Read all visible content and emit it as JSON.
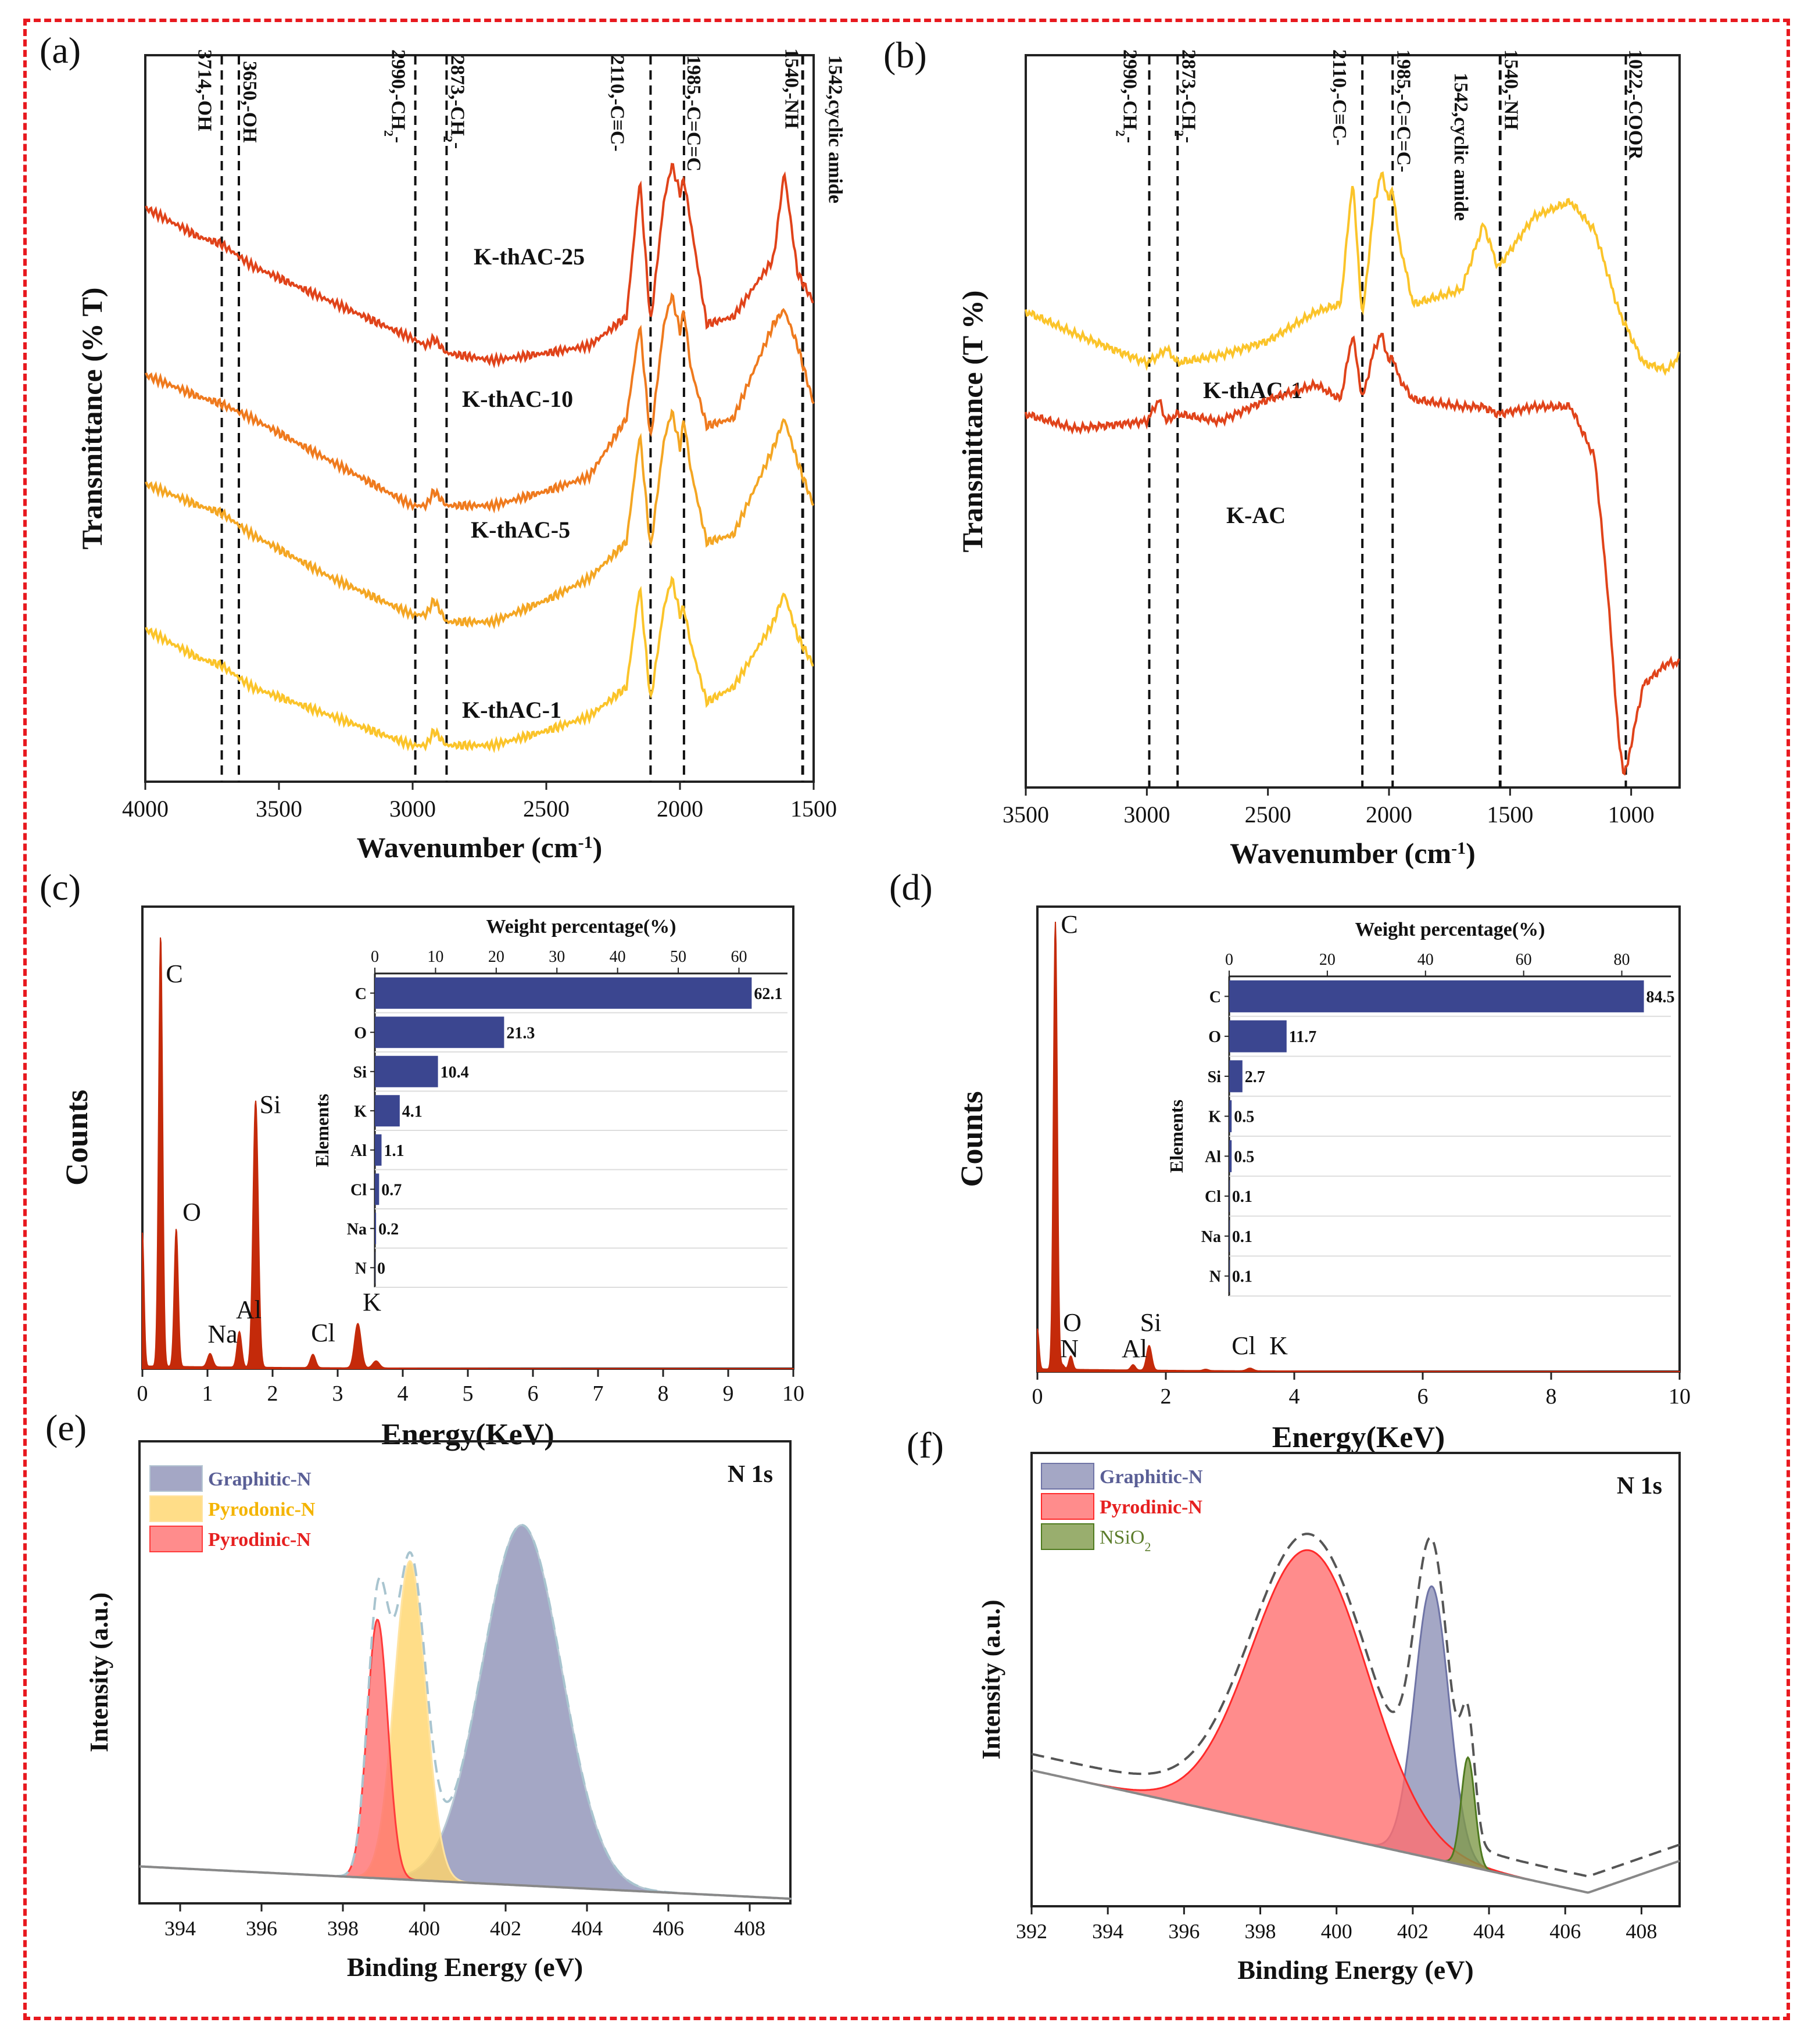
{
  "panel_labels": [
    "(a)",
    "(b)",
    "(c)",
    "(d)",
    "(e)",
    "(f)"
  ],
  "colors": {
    "frame": "#e8191f",
    "k25": "#e0431a",
    "k10": "#ef7a1e",
    "k5": "#f4a623",
    "k1": "#fbc42a",
    "kac": "#e0431a",
    "bar": "#3b4690",
    "eds": "#c42a0a",
    "graphitic": "#8d91b7",
    "pyrodonic": "#ffd46a",
    "pyrodinic": "#ff6f6f",
    "nsio2": "#7f9a4a"
  },
  "chart_data": [
    {
      "id": "a",
      "type": "line",
      "xlabel": "Wavenumber (cm",
      "xlabel_sup": "-1",
      "xlabel_end": ")",
      "ylabel": "Transmittance (% T)",
      "xlim": [
        4000,
        1500
      ],
      "xticks": [
        "4000",
        "3500",
        "3000",
        "2500",
        "2000",
        "1500"
      ],
      "ylim": [
        0,
        100
      ],
      "annotations": [
        {
          "x": 3714,
          "label": "3714,-OH"
        },
        {
          "x": 3650,
          "label": "3650,-OH"
        },
        {
          "x": 2990,
          "label": "2990,-CH",
          "sub": "2",
          "tail": "-"
        },
        {
          "x": 2873,
          "label": "2873,-CH",
          "sub": "2",
          "tail": "-"
        },
        {
          "x": 2110,
          "label": "2110,-C≡C-"
        },
        {
          "x": 1985,
          "label": "1985,-C=C=C"
        },
        {
          "x": 1542,
          "label": "1542,cyclic amide"
        },
        {
          "x": 1540,
          "label": "1540,-NH"
        }
      ],
      "series": [
        {
          "name": "K-thAC-25",
          "x": [
            4000,
            3800,
            3714,
            3600,
            3300,
            3000,
            2950,
            2920,
            2873,
            2700,
            2500,
            2340,
            2200,
            2150,
            2110,
            2060,
            2030,
            2000,
            1985,
            1960,
            1900,
            1800,
            1650,
            1610,
            1560,
            1500
          ],
          "y": [
            79,
            75,
            74,
            71,
            66,
            61,
            60,
            61,
            59,
            58,
            59,
            60,
            64,
            83,
            63,
            80,
            85,
            81,
            83,
            77,
            63,
            64,
            72,
            84,
            70,
            66
          ]
        },
        {
          "name": "K-thAC-10",
          "x": [
            4000,
            3800,
            3714,
            3600,
            3300,
            3000,
            2950,
            2920,
            2873,
            2700,
            2500,
            2340,
            2200,
            2150,
            2110,
            2060,
            2030,
            2000,
            1985,
            1960,
            1900,
            1800,
            1650,
            1610,
            1560,
            1500
          ],
          "y": [
            56,
            53,
            52,
            50,
            44,
            38,
            38,
            40,
            38,
            38,
            40,
            42,
            50,
            63,
            47,
            63,
            67,
            62,
            65,
            57,
            49,
            50,
            63,
            65,
            60,
            52
          ]
        },
        {
          "name": "K-thAC-5",
          "x": [
            4000,
            3800,
            3714,
            3600,
            3300,
            3000,
            2950,
            2920,
            2873,
            2700,
            2500,
            2340,
            2200,
            2150,
            2110,
            2060,
            2030,
            2000,
            1985,
            1960,
            1900,
            1800,
            1650,
            1610,
            1560,
            1500
          ],
          "y": [
            41,
            38,
            37,
            34,
            28,
            23,
            23,
            25,
            22,
            22,
            25,
            28,
            33,
            48,
            32,
            47,
            51,
            46,
            50,
            43,
            33,
            34,
            46,
            50,
            44,
            38
          ]
        },
        {
          "name": "K-thAC-1",
          "x": [
            4000,
            3800,
            3714,
            3600,
            3300,
            3000,
            2950,
            2920,
            2873,
            2700,
            2500,
            2340,
            2200,
            2150,
            2110,
            2060,
            2030,
            2000,
            1985,
            1960,
            1900,
            1800,
            1650,
            1610,
            1560,
            1500
          ],
          "y": [
            21,
            17,
            16,
            13,
            9,
            5,
            5,
            7,
            5,
            5,
            7,
            9,
            13,
            27,
            11,
            24,
            28,
            23,
            24,
            19,
            11,
            13,
            22,
            26,
            20,
            16
          ]
        }
      ]
    },
    {
      "id": "b",
      "type": "line",
      "xlabel": "Wavenumber (cm",
      "xlabel_sup": "-1",
      "xlabel_end": ")",
      "ylabel": "Transmittance (T %)",
      "xlim": [
        3500,
        800
      ],
      "xticks": [
        "3500",
        "3000",
        "2500",
        "2000",
        "1500",
        "1000"
      ],
      "ylim": [
        0,
        100
      ],
      "annotations": [
        {
          "x": 2990,
          "label": "2990,-CH",
          "sub": "2",
          "tail": "-"
        },
        {
          "x": 2873,
          "label": "2873,-CH",
          "sub": "2",
          "tail": "-"
        },
        {
          "x": 2110,
          "label": "2110,-C≡C-"
        },
        {
          "x": 1985,
          "label": "1985,-C=C=C-"
        },
        {
          "x": 1542,
          "label": "1542,cyclic amide"
        },
        {
          "x": 1540,
          "label": "1540,-NH"
        },
        {
          "x": 1022,
          "label": "1022,-COOR"
        }
      ],
      "series": [
        {
          "name": "K-thAC-1",
          "x": [
            3500,
            3300,
            3000,
            2950,
            2920,
            2873,
            2700,
            2500,
            2300,
            2200,
            2150,
            2110,
            2060,
            2030,
            2000,
            1985,
            1960,
            1900,
            1700,
            1610,
            1550,
            1400,
            1250,
            1150,
            1050,
            950,
            850,
            800
          ],
          "y": [
            65,
            62,
            58,
            59,
            60,
            58,
            59,
            61,
            65,
            66,
            83,
            64,
            80,
            84,
            80,
            82,
            75,
            66,
            68,
            77,
            71,
            78,
            80,
            76,
            65,
            58,
            57,
            59
          ]
        },
        {
          "name": "K-AC",
          "x": [
            3500,
            3300,
            3000,
            2950,
            2920,
            2873,
            2700,
            2500,
            2300,
            2200,
            2150,
            2110,
            2060,
            2030,
            2000,
            1985,
            1960,
            1900,
            1700,
            1610,
            1550,
            1400,
            1250,
            1150,
            1100,
            1050,
            1030,
            1015,
            1000,
            950,
            850,
            800
          ],
          "y": [
            51,
            49,
            50,
            53,
            50,
            51,
            50,
            53,
            55,
            53,
            62,
            53,
            60,
            62,
            58,
            59,
            56,
            53,
            52,
            52,
            51,
            52,
            52,
            45,
            28,
            6,
            2,
            3,
            6,
            14,
            17,
            17
          ]
        }
      ]
    },
    {
      "id": "c",
      "type": "line",
      "xlabel": "Energy(KeV)",
      "ylabel": "Counts",
      "xlim": [
        0,
        10
      ],
      "xticks": [
        "0",
        "1",
        "2",
        "3",
        "4",
        "5",
        "6",
        "7",
        "8",
        "9",
        "10"
      ],
      "peaks": [
        {
          "x": 0.0,
          "h": 30,
          "w": 0.025,
          "label": ""
        },
        {
          "x": 0.28,
          "h": 97,
          "w": 0.03,
          "label": "C"
        },
        {
          "x": 0.52,
          "h": 31,
          "w": 0.03,
          "label": "O"
        },
        {
          "x": 1.04,
          "h": 3,
          "w": 0.04,
          "label": "Na"
        },
        {
          "x": 1.49,
          "h": 8,
          "w": 0.035,
          "label": "Al"
        },
        {
          "x": 1.74,
          "h": 60,
          "w": 0.04,
          "label": "Si"
        },
        {
          "x": 2.62,
          "h": 3,
          "w": 0.04,
          "label": "Cl"
        },
        {
          "x": 3.31,
          "h": 10,
          "w": 0.05,
          "label": "K"
        },
        {
          "x": 3.59,
          "h": 1.6,
          "w": 0.05,
          "label": ""
        }
      ],
      "inset": {
        "type": "bar",
        "title": "Weight percentage(%)",
        "ylabel": "Elements",
        "xlim": [
          0,
          68
        ],
        "xticks": [
          "0",
          "10",
          "20",
          "30",
          "40",
          "50",
          "60"
        ],
        "categories": [
          "C",
          "O",
          "Si",
          "K",
          "Al",
          "Cl",
          "Na",
          "N"
        ],
        "values": [
          62.1,
          21.3,
          10.4,
          4.1,
          1.1,
          0.7,
          0.2,
          0
        ],
        "value_labels": [
          "62.1",
          "21.3",
          "10.4",
          "4.1",
          "1.1",
          "0.7",
          "0.2",
          "0"
        ]
      }
    },
    {
      "id": "d",
      "type": "line",
      "xlabel": "Energy(KeV)",
      "ylabel": "Counts",
      "xlim": [
        0,
        10
      ],
      "xticks": [
        "0",
        "2",
        "4",
        "6",
        "8",
        "10"
      ],
      "peaks": [
        {
          "x": 0.0,
          "h": 9,
          "w": 0.025,
          "label": ""
        },
        {
          "x": 0.28,
          "h": 100,
          "w": 0.03,
          "label": "C"
        },
        {
          "x": 0.52,
          "h": 3,
          "w": 0.03,
          "label": "O"
        },
        {
          "x": 0.39,
          "h": 1,
          "w": 0.03,
          "label": "N"
        },
        {
          "x": 1.49,
          "h": 1.2,
          "w": 0.035,
          "label": "Al"
        },
        {
          "x": 1.74,
          "h": 5.5,
          "w": 0.04,
          "label": "Si"
        },
        {
          "x": 2.62,
          "h": 0.3,
          "w": 0.04,
          "label": "Cl"
        },
        {
          "x": 3.31,
          "h": 0.6,
          "w": 0.05,
          "label": "K"
        }
      ],
      "inset": {
        "type": "bar",
        "title": "Weight percentage(%)",
        "ylabel": "Elements",
        "xlim": [
          0,
          90
        ],
        "xticks": [
          "0",
          "20",
          "40",
          "60",
          "80"
        ],
        "categories": [
          "C",
          "O",
          "Si",
          "K",
          "Al",
          "Cl",
          "Na",
          "N"
        ],
        "values": [
          84.5,
          11.7,
          2.7,
          0.5,
          0.5,
          0.1,
          0.1,
          0.1
        ],
        "value_labels": [
          "84.5",
          "11.7",
          "2.7",
          "0.5",
          "0.5",
          "0.1",
          "0.1",
          "0.1"
        ]
      }
    },
    {
      "id": "e",
      "type": "area",
      "title": "N 1s",
      "xlabel": "Binding Energy (eV)",
      "ylabel": "Intensity (a.u.)",
      "xlim": [
        393,
        409
      ],
      "xticks": [
        "394",
        "396",
        "398",
        "400",
        "402",
        "404",
        "406",
        "408"
      ],
      "baseline": [
        [
          393,
          8
        ],
        [
          409,
          1
        ]
      ],
      "components": [
        {
          "name": "Graphitic-N",
          "center": 402.4,
          "height": 78,
          "fwhm": 2.3
        },
        {
          "name": "Pyrodonic-N",
          "center": 399.65,
          "height": 69,
          "fwhm": 0.9
        },
        {
          "name": "Pyrodinic-N",
          "center": 398.85,
          "height": 56,
          "fwhm": 0.6
        }
      ],
      "legend": [
        "Graphitic-N",
        "Pyrodonic-N",
        "Pyrodinic-N"
      ]
    },
    {
      "id": "f",
      "type": "area",
      "title": "N 1s",
      "xlabel": "Binding Energy (eV)",
      "ylabel": "Intensity (a.u.)",
      "xlim": [
        392,
        409
      ],
      "xticks": [
        "392",
        "394",
        "396",
        "398",
        "400",
        "402",
        "404",
        "406",
        "408"
      ],
      "baseline": [
        [
          392,
          30
        ],
        [
          406.6,
          3
        ],
        [
          409,
          10
        ]
      ],
      "components": [
        {
          "name": "Graphitic-N",
          "center": 402.5,
          "height": 60,
          "fwhm": 1.05
        },
        {
          "name": "Pyrodinic-N",
          "center": 399.3,
          "height": 62,
          "fwhm": 3.6
        },
        {
          "name": "NSiO2",
          "center": 403.45,
          "height": 24,
          "fwhm": 0.42
        }
      ],
      "legend": [
        "Graphitic-N",
        "Pyrodinic-N",
        "NSiO2"
      ],
      "legend_display": {
        "prefix": "NSiO",
        "sub": "2"
      }
    }
  ]
}
